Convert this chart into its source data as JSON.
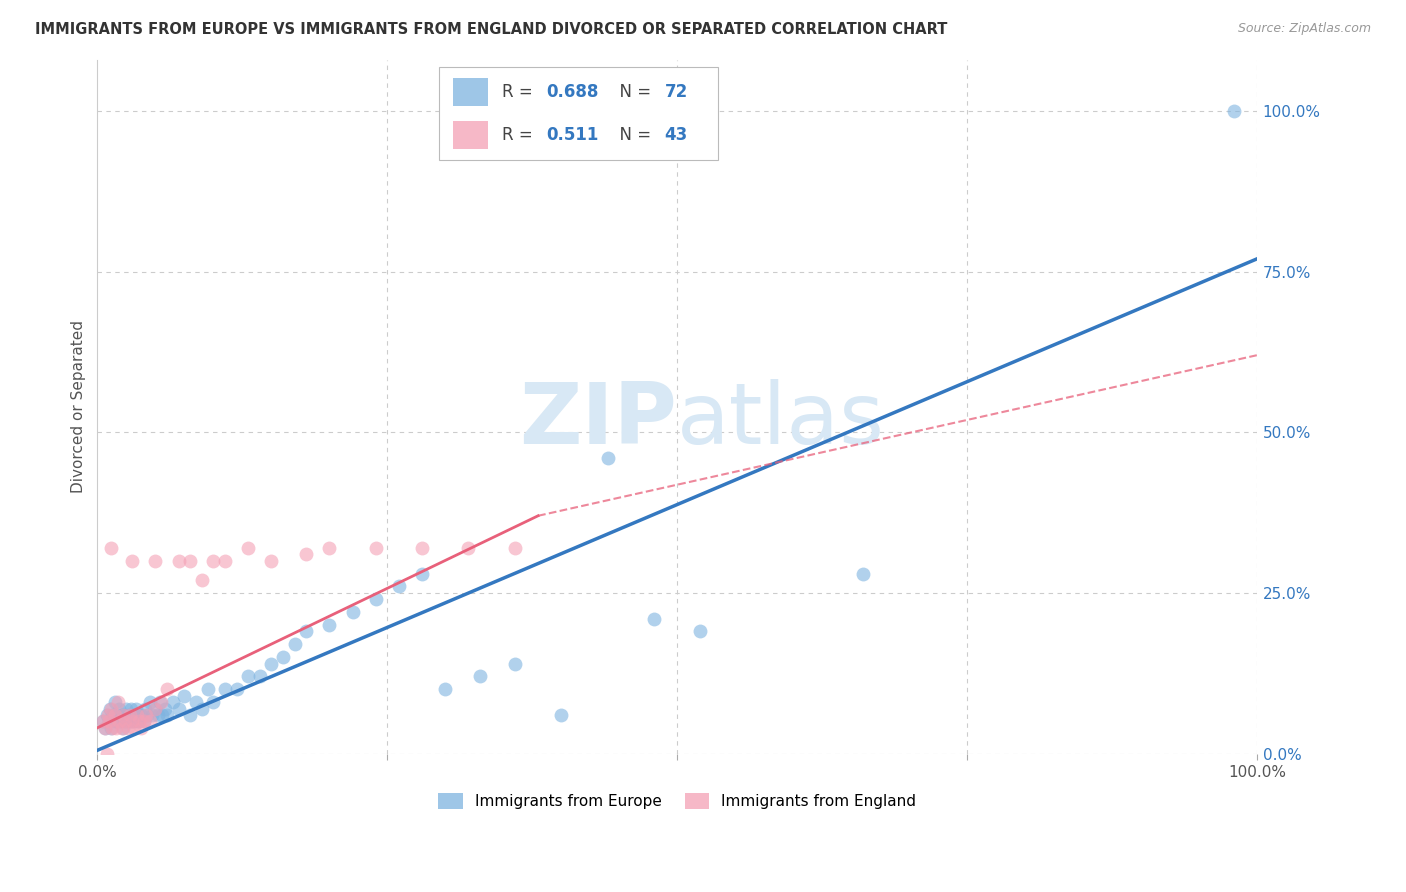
{
  "title": "IMMIGRANTS FROM EUROPE VS IMMIGRANTS FROM ENGLAND DIVORCED OR SEPARATED CORRELATION CHART",
  "source": "Source: ZipAtlas.com",
  "ylabel": "Divorced or Separated",
  "blue_color": "#7EB3E0",
  "pink_color": "#F4A0B5",
  "blue_line_color": "#3478C0",
  "pink_line_color": "#E8607A",
  "grid_color": "#CCCCCC",
  "watermark_color": "#D8E8F5",
  "legend_blue_r": "0.688",
  "legend_blue_n": "72",
  "legend_pink_r": "0.511",
  "legend_pink_n": "43",
  "xlim": [
    0.0,
    1.0
  ],
  "ylim": [
    0.0,
    1.08
  ],
  "blue_line": [
    0.0,
    0.005,
    1.0,
    0.77
  ],
  "pink_line_solid": [
    0.0,
    0.04,
    0.38,
    0.37
  ],
  "pink_line_dash": [
    0.38,
    0.37,
    1.0,
    0.62
  ],
  "blue_x": [
    0.005,
    0.007,
    0.008,
    0.01,
    0.011,
    0.012,
    0.013,
    0.014,
    0.015,
    0.016,
    0.017,
    0.018,
    0.019,
    0.02,
    0.021,
    0.022,
    0.023,
    0.024,
    0.025,
    0.026,
    0.027,
    0.028,
    0.029,
    0.03,
    0.031,
    0.032,
    0.033,
    0.034,
    0.035,
    0.036,
    0.038,
    0.04,
    0.041,
    0.043,
    0.045,
    0.047,
    0.05,
    0.052,
    0.054,
    0.056,
    0.058,
    0.06,
    0.065,
    0.07,
    0.075,
    0.08,
    0.085,
    0.09,
    0.095,
    0.1,
    0.11,
    0.12,
    0.13,
    0.14,
    0.15,
    0.16,
    0.17,
    0.18,
    0.2,
    0.22,
    0.24,
    0.26,
    0.28,
    0.3,
    0.33,
    0.36,
    0.4,
    0.44,
    0.48,
    0.52,
    0.66,
    0.98
  ],
  "blue_y": [
    0.05,
    0.04,
    0.06,
    0.05,
    0.07,
    0.04,
    0.06,
    0.05,
    0.08,
    0.05,
    0.06,
    0.05,
    0.07,
    0.05,
    0.06,
    0.04,
    0.06,
    0.05,
    0.07,
    0.05,
    0.06,
    0.05,
    0.07,
    0.05,
    0.06,
    0.05,
    0.07,
    0.05,
    0.06,
    0.05,
    0.06,
    0.05,
    0.07,
    0.06,
    0.08,
    0.06,
    0.07,
    0.06,
    0.08,
    0.06,
    0.07,
    0.06,
    0.08,
    0.07,
    0.09,
    0.06,
    0.08,
    0.07,
    0.1,
    0.08,
    0.1,
    0.1,
    0.12,
    0.12,
    0.14,
    0.15,
    0.17,
    0.19,
    0.2,
    0.22,
    0.24,
    0.26,
    0.28,
    0.1,
    0.12,
    0.14,
    0.06,
    0.46,
    0.21,
    0.19,
    0.28,
    1.0
  ],
  "pink_x": [
    0.005,
    0.007,
    0.009,
    0.01,
    0.012,
    0.013,
    0.015,
    0.016,
    0.018,
    0.019,
    0.021,
    0.022,
    0.024,
    0.026,
    0.028,
    0.03,
    0.032,
    0.034,
    0.036,
    0.038,
    0.04,
    0.042,
    0.045,
    0.05,
    0.055,
    0.06,
    0.07,
    0.08,
    0.09,
    0.1,
    0.11,
    0.13,
    0.15,
    0.18,
    0.2,
    0.24,
    0.28,
    0.32,
    0.36,
    0.03,
    0.012,
    0.008,
    0.05
  ],
  "pink_y": [
    0.05,
    0.04,
    0.06,
    0.05,
    0.07,
    0.04,
    0.06,
    0.04,
    0.08,
    0.05,
    0.04,
    0.06,
    0.05,
    0.04,
    0.06,
    0.05,
    0.04,
    0.06,
    0.05,
    0.04,
    0.05,
    0.06,
    0.05,
    0.07,
    0.08,
    0.1,
    0.3,
    0.3,
    0.27,
    0.3,
    0.3,
    0.32,
    0.3,
    0.31,
    0.32,
    0.32,
    0.32,
    0.32,
    0.32,
    0.3,
    0.32,
    0.0,
    0.3
  ]
}
